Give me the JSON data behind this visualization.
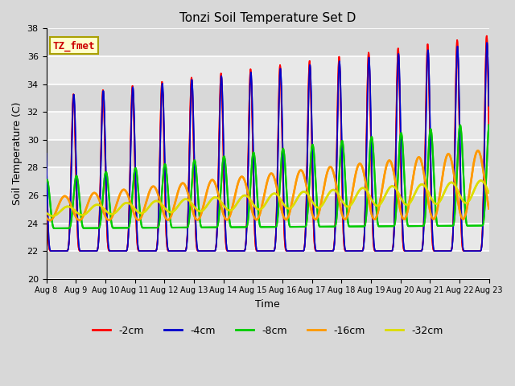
{
  "title": "Tonzi Soil Temperature Set D",
  "xlabel": "Time",
  "ylabel": "Soil Temperature (C)",
  "ylim": [
    20,
    38
  ],
  "yticks": [
    20,
    22,
    24,
    26,
    28,
    30,
    32,
    34,
    36,
    38
  ],
  "series_labels": [
    "-2cm",
    "-4cm",
    "-8cm",
    "-16cm",
    "-32cm"
  ],
  "series_colors": [
    "#ff0000",
    "#0000cc",
    "#00cc00",
    "#ff9900",
    "#dddd00"
  ],
  "annotation_text": "TZ_fmet",
  "annotation_color": "#cc0000",
  "annotation_bg": "#ffffcc",
  "annotation_border": "#aaa000",
  "plot_bg": "#e8e8e8",
  "n_days": 15,
  "start_day": 8,
  "samples_per_day": 144
}
